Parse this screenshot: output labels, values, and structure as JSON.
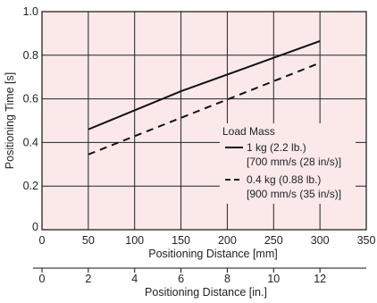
{
  "chart_data": {
    "type": "line",
    "ylabel": "Positioning Time [s]",
    "xlabel": "Positioning Distance [mm]",
    "xlabel2": "Positioning Distance [in.]",
    "xlim": [
      0,
      350
    ],
    "ylim": [
      0,
      1.0
    ],
    "x2lim": [
      0,
      14
    ],
    "xticks": [
      "0",
      "50",
      "100",
      "150",
      "200",
      "250",
      "300",
      "350"
    ],
    "yticks": [
      "0",
      "0.2",
      "0.4",
      "0.6",
      "0.8",
      "1.0"
    ],
    "x2ticks": [
      "0",
      "2",
      "4",
      "6",
      "8",
      "10",
      "12"
    ],
    "grid": true,
    "colors": {
      "background": "#fbe9e9",
      "grid": "#222222",
      "line": "#111111"
    },
    "legend": {
      "title": "Load Mass",
      "position": "right",
      "items": [
        {
          "label": "1 kg (2.2 lb.)",
          "sub": "[700 mm/s (28 in/s)]",
          "style": "solid"
        },
        {
          "label": "0.4 kg (0.88 lb.)",
          "sub": "[900 mm/s (35 in/s)]",
          "style": "dashed"
        }
      ]
    },
    "series": [
      {
        "style": "solid",
        "x": [
          50,
          150,
          300
        ],
        "y": [
          0.46,
          0.635,
          0.865
        ]
      },
      {
        "style": "dashed",
        "x": [
          50,
          300
        ],
        "y": [
          0.345,
          0.765
        ]
      }
    ]
  }
}
